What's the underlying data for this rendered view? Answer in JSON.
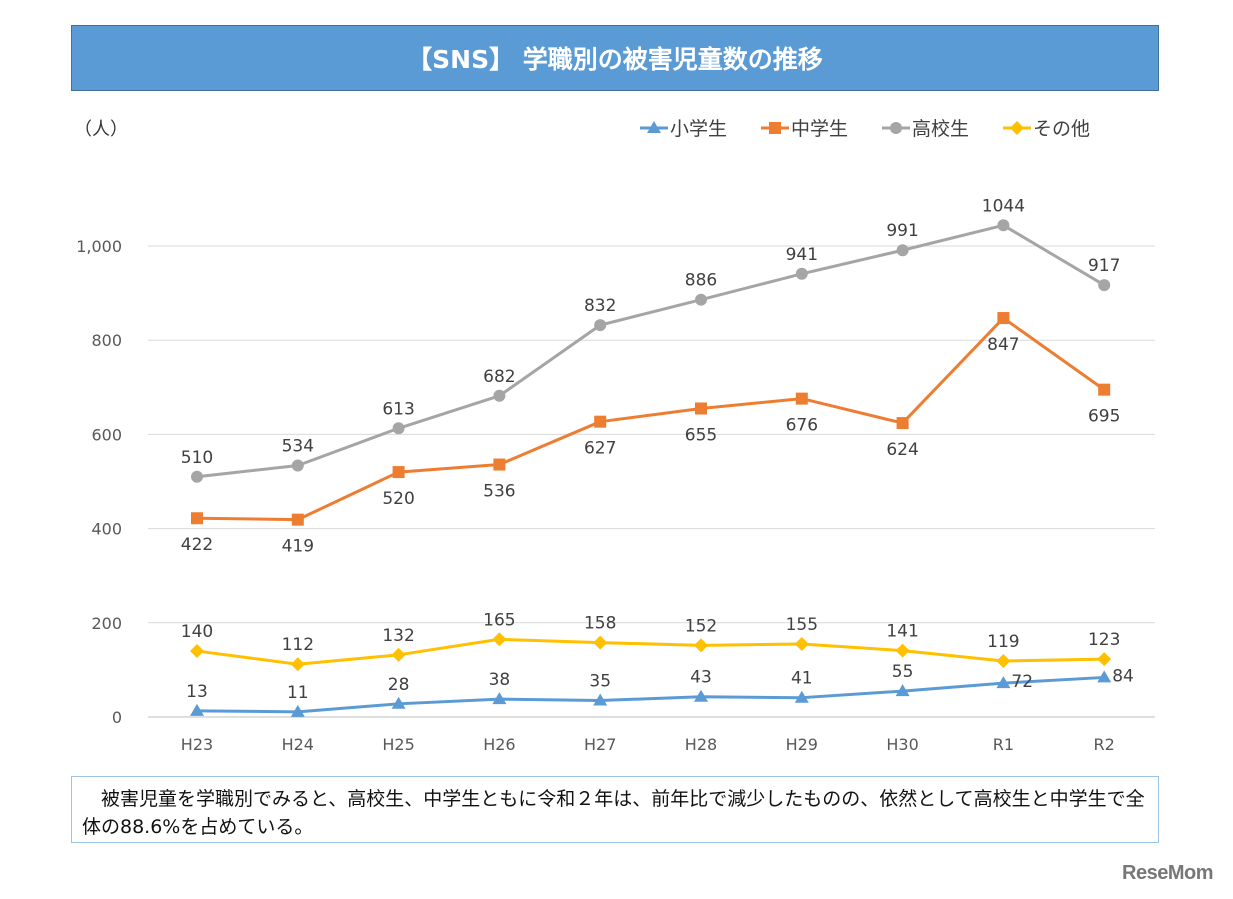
{
  "title": "【SNS】 学職別の被害児童数の推移",
  "note": "　被害児童を学職別でみると、高校生、中学生ともに令和２年は、前年比で減少したものの、依然として高校生と中学生で全体の88.6%を占めている。",
  "logo": "ReseMom",
  "chart_data": {
    "type": "line",
    "ylabel": "（人）",
    "categories": [
      "H23",
      "H24",
      "H25",
      "H26",
      "H27",
      "H28",
      "H29",
      "H30",
      "R1",
      "R2"
    ],
    "ylim": [
      0,
      1100
    ],
    "yticks": [
      0,
      200,
      400,
      600,
      800,
      1000
    ],
    "ytick_labels": [
      "0",
      "200",
      "400",
      "600",
      "800",
      "1,000"
    ],
    "grid": true,
    "legend": "top-right",
    "series": [
      {
        "name": "小学生",
        "values": [
          13,
          11,
          28,
          38,
          35,
          43,
          41,
          55,
          72,
          84
        ],
        "color": "#5B9BD5",
        "marker": "triangle"
      },
      {
        "name": "中学生",
        "values": [
          422,
          419,
          520,
          536,
          627,
          655,
          676,
          624,
          847,
          695
        ],
        "color": "#ED7D31",
        "marker": "square"
      },
      {
        "name": "高校生",
        "values": [
          510,
          534,
          613,
          682,
          832,
          886,
          941,
          991,
          1044,
          917
        ],
        "color": "#A5A5A5",
        "marker": "circle"
      },
      {
        "name": "その他",
        "values": [
          140,
          112,
          132,
          165,
          158,
          152,
          155,
          141,
          119,
          123
        ],
        "color": "#FFC000",
        "marker": "diamond"
      }
    ]
  }
}
